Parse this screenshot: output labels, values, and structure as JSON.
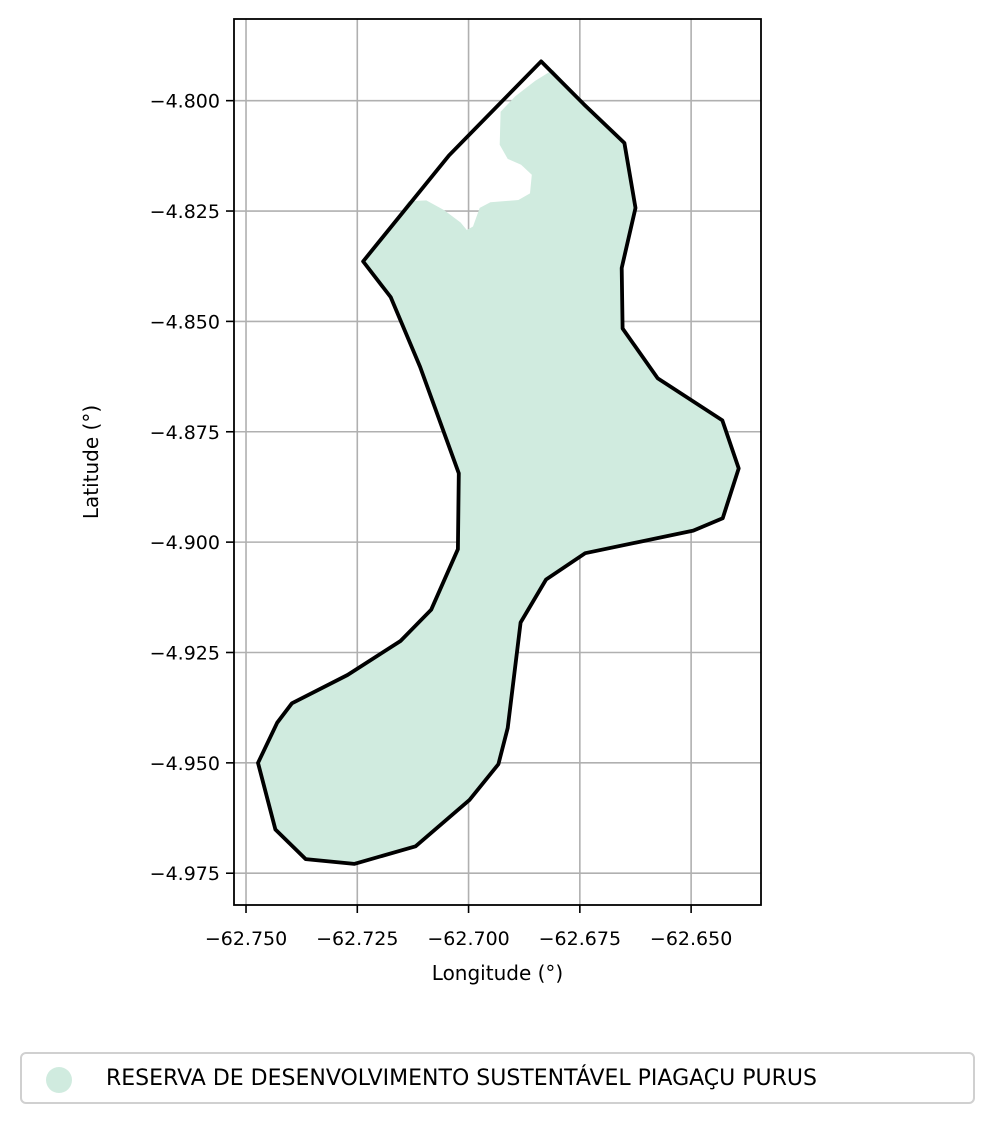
{
  "map": {
    "xlabel": "Longitude (°)",
    "ylabel": "Latitude (°)",
    "xlim": [
      -62.7527,
      -62.6343
    ],
    "ylim": [
      -4.9822,
      -4.7815
    ],
    "x_ticks": [
      {
        "value": -62.75,
        "label": "−62.750"
      },
      {
        "value": -62.725,
        "label": "−62.725"
      },
      {
        "value": -62.7,
        "label": "−62.700"
      },
      {
        "value": -62.675,
        "label": "−62.675"
      },
      {
        "value": -62.65,
        "label": "−62.650"
      }
    ],
    "y_ticks": [
      {
        "value": -4.8,
        "label": "−4.800"
      },
      {
        "value": -4.825,
        "label": "−4.825"
      },
      {
        "value": -4.85,
        "label": "−4.850"
      },
      {
        "value": -4.875,
        "label": "−4.875"
      },
      {
        "value": -4.9,
        "label": "−4.900"
      },
      {
        "value": -4.925,
        "label": "−4.925"
      },
      {
        "value": -4.95,
        "label": "−4.950"
      },
      {
        "value": -4.975,
        "label": "−4.975"
      }
    ],
    "grid": true,
    "fill_color": "#d0ebdf",
    "outline_color": "#000000",
    "boundary": [
      [
        -62.6837,
        -4.7911
      ],
      [
        -62.6741,
        -4.8008
      ],
      [
        -62.665,
        -4.8096
      ],
      [
        -62.6625,
        -4.8243
      ],
      [
        -62.6656,
        -4.8379
      ],
      [
        -62.6654,
        -4.8516
      ],
      [
        -62.6575,
        -4.8629
      ],
      [
        -62.643,
        -4.8724
      ],
      [
        -62.6393,
        -4.8833
      ],
      [
        -62.6429,
        -4.8946
      ],
      [
        -62.6495,
        -4.8974
      ],
      [
        -62.6738,
        -4.9025
      ],
      [
        -62.6826,
        -4.9085
      ],
      [
        -62.6883,
        -4.9182
      ],
      [
        -62.6912,
        -4.9421
      ],
      [
        -62.6933,
        -4.9503
      ],
      [
        -62.6998,
        -4.9584
      ],
      [
        -62.7119,
        -4.9689
      ],
      [
        -62.7257,
        -4.9729
      ],
      [
        -62.7366,
        -4.9718
      ],
      [
        -62.7434,
        -4.9651
      ],
      [
        -62.7473,
        -4.95
      ],
      [
        -62.743,
        -4.9409
      ],
      [
        -62.7397,
        -4.9365
      ],
      [
        -62.7272,
        -4.9301
      ],
      [
        -62.7153,
        -4.9224
      ],
      [
        -62.7084,
        -4.9153
      ],
      [
        -62.7024,
        -4.9016
      ],
      [
        -62.7022,
        -4.8844
      ],
      [
        -62.7109,
        -4.8603
      ],
      [
        -62.7175,
        -4.8445
      ],
      [
        -62.7237,
        -4.8364
      ],
      [
        -62.7044,
        -4.8124
      ],
      [
        -62.6837,
        -4.7911
      ]
    ],
    "coverage": [
      [
        -62.681,
        -4.793
      ],
      [
        -62.6741,
        -4.8008
      ],
      [
        -62.665,
        -4.8096
      ],
      [
        -62.6625,
        -4.8243
      ],
      [
        -62.6656,
        -4.8379
      ],
      [
        -62.6654,
        -4.8516
      ],
      [
        -62.6575,
        -4.8629
      ],
      [
        -62.643,
        -4.8724
      ],
      [
        -62.6393,
        -4.8833
      ],
      [
        -62.6429,
        -4.8946
      ],
      [
        -62.6495,
        -4.8974
      ],
      [
        -62.6738,
        -4.9025
      ],
      [
        -62.6826,
        -4.9085
      ],
      [
        -62.6883,
        -4.9182
      ],
      [
        -62.6912,
        -4.9421
      ],
      [
        -62.6933,
        -4.9503
      ],
      [
        -62.6998,
        -4.9584
      ],
      [
        -62.7119,
        -4.9689
      ],
      [
        -62.7257,
        -4.9729
      ],
      [
        -62.7366,
        -4.9718
      ],
      [
        -62.7434,
        -4.9651
      ],
      [
        -62.7473,
        -4.95
      ],
      [
        -62.743,
        -4.9409
      ],
      [
        -62.7397,
        -4.9365
      ],
      [
        -62.7272,
        -4.9301
      ],
      [
        -62.7153,
        -4.9224
      ],
      [
        -62.7084,
        -4.9153
      ],
      [
        -62.7024,
        -4.9016
      ],
      [
        -62.7022,
        -4.8844
      ],
      [
        -62.7109,
        -4.8603
      ],
      [
        -62.7175,
        -4.8445
      ],
      [
        -62.7237,
        -4.8364
      ],
      [
        -62.718,
        -4.8292
      ],
      [
        -62.7135,
        -4.8228
      ],
      [
        -62.7095,
        -4.8226
      ],
      [
        -62.7055,
        -4.8248
      ],
      [
        -62.7018,
        -4.8276
      ],
      [
        -62.7004,
        -4.8293
      ],
      [
        -62.699,
        -4.8285
      ],
      [
        -62.6975,
        -4.8243
      ],
      [
        -62.6951,
        -4.823
      ],
      [
        -62.6888,
        -4.8225
      ],
      [
        -62.6862,
        -4.821
      ],
      [
        -62.6858,
        -4.8168
      ],
      [
        -62.6882,
        -4.8145
      ],
      [
        -62.6912,
        -4.8132
      ],
      [
        -62.693,
        -4.81
      ],
      [
        -62.6928,
        -4.8025
      ],
      [
        -62.6895,
        -4.799
      ],
      [
        -62.685,
        -4.7955
      ],
      [
        -62.681,
        -4.793
      ]
    ]
  },
  "legend": {
    "label": "RESERVA DE DESENVOLVIMENTO SUSTENTÁVEL PIAGAÇU PURUS",
    "marker_color": "#d0ebdf"
  }
}
